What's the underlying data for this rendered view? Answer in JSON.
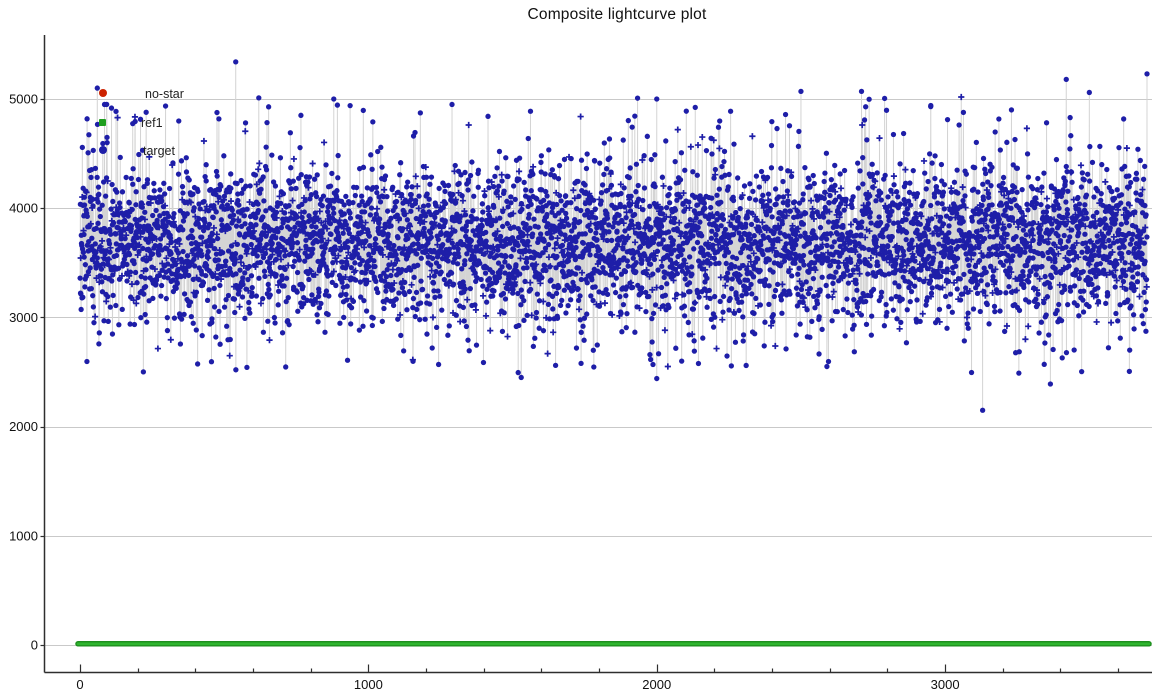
{
  "title": "Composite lightcurve plot",
  "colors": {
    "background": "#ffffff",
    "target_point": "#1e1ea8",
    "connector_line": "#d4d4d4",
    "grid_line": "#c9c9c9",
    "axis_line": "#2e2e2e",
    "tick_text": "#111111",
    "no_star_marker": "#cc2200",
    "ref1_marker": "#1e9e1e",
    "ref1_line_dark": "#1e8f1e",
    "ref1_line_bright": "#2eb52e"
  },
  "legend": {
    "items": [
      {
        "label": "no-star",
        "marker": "circle",
        "color": "#cc2200"
      },
      {
        "label": "ref1",
        "marker": "square",
        "color": "#1e9e1e"
      },
      {
        "label": "target",
        "marker": "circle",
        "color": "#1e1ea8"
      }
    ]
  },
  "chart_data": {
    "type": "scatter",
    "title": "Composite lightcurve plot",
    "xlabel": "",
    "ylabel": "",
    "x_ticks": [
      0,
      1000,
      2000,
      3000
    ],
    "x_minor_step": 200,
    "y_ticks": [
      0,
      1000,
      2000,
      3000,
      4000,
      5000
    ],
    "x_range": [
      0,
      3700
    ],
    "y_axis_range": [
      -250,
      5850
    ],
    "grid": "horizontal-only",
    "legend_position": "inside-top-left",
    "series": [
      {
        "name": "target",
        "type": "scatter-connected",
        "marker": "filled-circle-with-occasional-plus",
        "n_points": 5200,
        "x_min": 0,
        "x_max": 3700,
        "y_mean": 3680,
        "y_sd": 365,
        "y_bulk_min": 2450,
        "y_bulk_max": 5050,
        "tail_fraction_high": 0.01,
        "tail_fraction_low": 0.007,
        "seed": 11,
        "description": "dense photometric scatter band with light-gray connecting drop lines"
      },
      {
        "name": "ref1",
        "type": "line",
        "y_constant": 0,
        "x_min": 0,
        "x_max": 3700,
        "description": "thick bright green flat line at zero"
      },
      {
        "name": "no-star",
        "type": "scatter",
        "visible_points": 0,
        "description": "legend marker only; no visible distinct data points"
      }
    ],
    "outliers_high": [
      [
        60,
        5100
      ],
      [
        85,
        4950
      ],
      [
        540,
        5340
      ],
      [
        620,
        5010
      ],
      [
        880,
        5000
      ],
      [
        1290,
        4950
      ],
      [
        2000,
        5000
      ],
      [
        2500,
        5070
      ],
      [
        2710,
        5070
      ],
      [
        2950,
        4930
      ],
      [
        3230,
        4900
      ],
      [
        3420,
        5180
      ],
      [
        3500,
        5060
      ],
      [
        3700,
        5230
      ]
    ],
    "outliers_low": [
      [
        1530,
        2450
      ],
      [
        2000,
        2440
      ],
      [
        2310,
        2560
      ],
      [
        2590,
        2550
      ],
      [
        3130,
        2150
      ],
      [
        3365,
        2390
      ],
      [
        3640,
        2700
      ]
    ]
  }
}
